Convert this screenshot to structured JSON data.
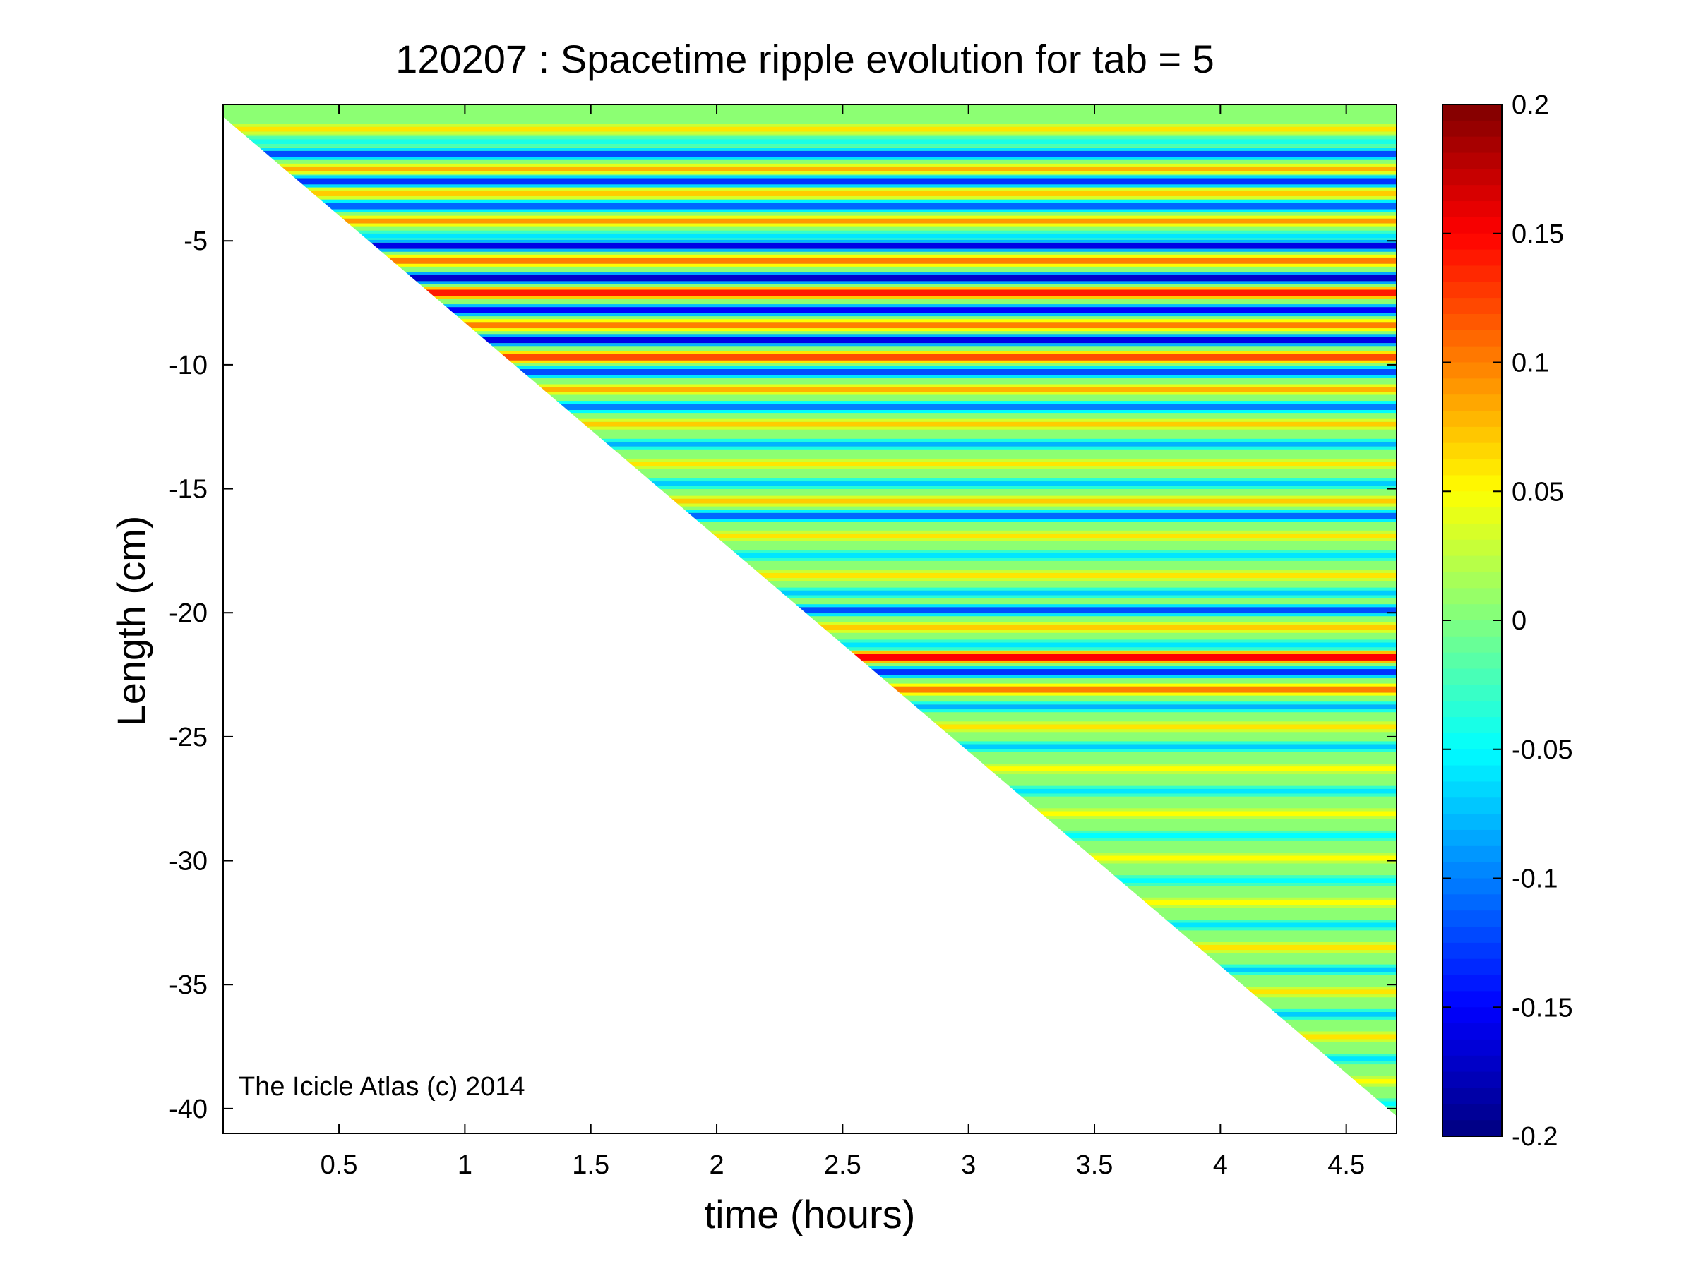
{
  "chart_data": {
    "type": "heatmap",
    "title": "120207 : Spacetime ripple evolution for tab = 5",
    "xlabel": "time (hours)",
    "ylabel": "Length (cm)",
    "xlim": [
      0.04,
      4.7
    ],
    "ylim": [
      -41,
      0.5
    ],
    "xticks": [
      0.5,
      1,
      1.5,
      2,
      2.5,
      3,
      3.5,
      4,
      4.5
    ],
    "yticks": [
      -5,
      -10,
      -15,
      -20,
      -25,
      -30,
      -35,
      -40
    ],
    "xtick_labels": [
      "0.5",
      "1",
      "1.5",
      "2",
      "2.5",
      "3",
      "3.5",
      "4",
      "4.5"
    ],
    "ytick_labels": [
      "-5",
      "-10",
      "-15",
      "-20",
      "-25",
      "-30",
      "-35",
      "-40"
    ],
    "colormap": "jet",
    "clim": [
      -0.2,
      0.2
    ],
    "colorbar_ticks": [
      0.2,
      0.15,
      0.1,
      0.05,
      0,
      -0.05,
      -0.1,
      -0.15,
      -0.2
    ],
    "colorbar_tick_labels": [
      "0.2",
      "0.15",
      "0.1",
      "0.05",
      "0",
      "-0.05",
      "-0.1",
      "-0.15",
      "-0.2"
    ],
    "data_region": {
      "description_of_shape": "upper triangle bounded by icicle tip length",
      "tip_length_start_cm": 0,
      "tip_length_end_cm": -40.3,
      "tip_time_start_hours": 0.04,
      "tip_time_end_hours": 4.7
    },
    "ripple_bands": [
      {
        "length_cm": -0.5,
        "value": 0.06
      },
      {
        "length_cm": -1.0,
        "value": -0.04
      },
      {
        "length_cm": -1.5,
        "value": -0.12
      },
      {
        "length_cm": -2.1,
        "value": 0.08
      },
      {
        "length_cm": -2.6,
        "value": -0.13
      },
      {
        "length_cm": -3.1,
        "value": 0.07
      },
      {
        "length_cm": -3.6,
        "value": -0.11
      },
      {
        "length_cm": -4.2,
        "value": 0.09
      },
      {
        "length_cm": -4.8,
        "value": -0.06
      },
      {
        "length_cm": -5.2,
        "value": -0.16
      },
      {
        "length_cm": -5.8,
        "value": 0.1
      },
      {
        "length_cm": -6.5,
        "value": -0.17
      },
      {
        "length_cm": -7.1,
        "value": 0.14
      },
      {
        "length_cm": -7.8,
        "value": -0.15
      },
      {
        "length_cm": -8.4,
        "value": 0.1
      },
      {
        "length_cm": -9.0,
        "value": -0.16
      },
      {
        "length_cm": -9.7,
        "value": 0.12
      },
      {
        "length_cm": -10.3,
        "value": -0.12
      },
      {
        "length_cm": -11.0,
        "value": 0.08
      },
      {
        "length_cm": -11.7,
        "value": -0.1
      },
      {
        "length_cm": -12.4,
        "value": 0.07
      },
      {
        "length_cm": -13.2,
        "value": -0.08
      },
      {
        "length_cm": -14.0,
        "value": 0.06
      },
      {
        "length_cm": -14.8,
        "value": -0.07
      },
      {
        "length_cm": -15.5,
        "value": 0.07
      },
      {
        "length_cm": -16.1,
        "value": -0.11
      },
      {
        "length_cm": -16.9,
        "value": 0.06
      },
      {
        "length_cm": -17.7,
        "value": -0.06
      },
      {
        "length_cm": -18.5,
        "value": 0.06
      },
      {
        "length_cm": -19.2,
        "value": -0.07
      },
      {
        "length_cm": -19.9,
        "value": -0.12
      },
      {
        "length_cm": -20.6,
        "value": 0.07
      },
      {
        "length_cm": -21.3,
        "value": -0.06
      },
      {
        "length_cm": -21.8,
        "value": 0.15
      },
      {
        "length_cm": -22.4,
        "value": -0.13
      },
      {
        "length_cm": -23.1,
        "value": 0.1
      },
      {
        "length_cm": -23.8,
        "value": -0.08
      },
      {
        "length_cm": -24.6,
        "value": 0.06
      },
      {
        "length_cm": -25.4,
        "value": -0.07
      },
      {
        "length_cm": -26.3,
        "value": 0.05
      },
      {
        "length_cm": -27.2,
        "value": -0.06
      },
      {
        "length_cm": -28.1,
        "value": 0.05
      },
      {
        "length_cm": -29.0,
        "value": -0.05
      },
      {
        "length_cm": -29.9,
        "value": 0.05
      },
      {
        "length_cm": -30.8,
        "value": -0.05
      },
      {
        "length_cm": -31.7,
        "value": 0.05
      },
      {
        "length_cm": -32.6,
        "value": -0.06
      },
      {
        "length_cm": -33.5,
        "value": 0.06
      },
      {
        "length_cm": -34.4,
        "value": -0.07
      },
      {
        "length_cm": -35.3,
        "value": 0.06
      },
      {
        "length_cm": -36.2,
        "value": -0.07
      },
      {
        "length_cm": -37.1,
        "value": 0.06
      },
      {
        "length_cm": -38.0,
        "value": -0.06
      },
      {
        "length_cm": -38.9,
        "value": 0.05
      },
      {
        "length_cm": -39.8,
        "value": -0.05
      }
    ],
    "annotation": "The Icicle Atlas (c) 2014"
  }
}
